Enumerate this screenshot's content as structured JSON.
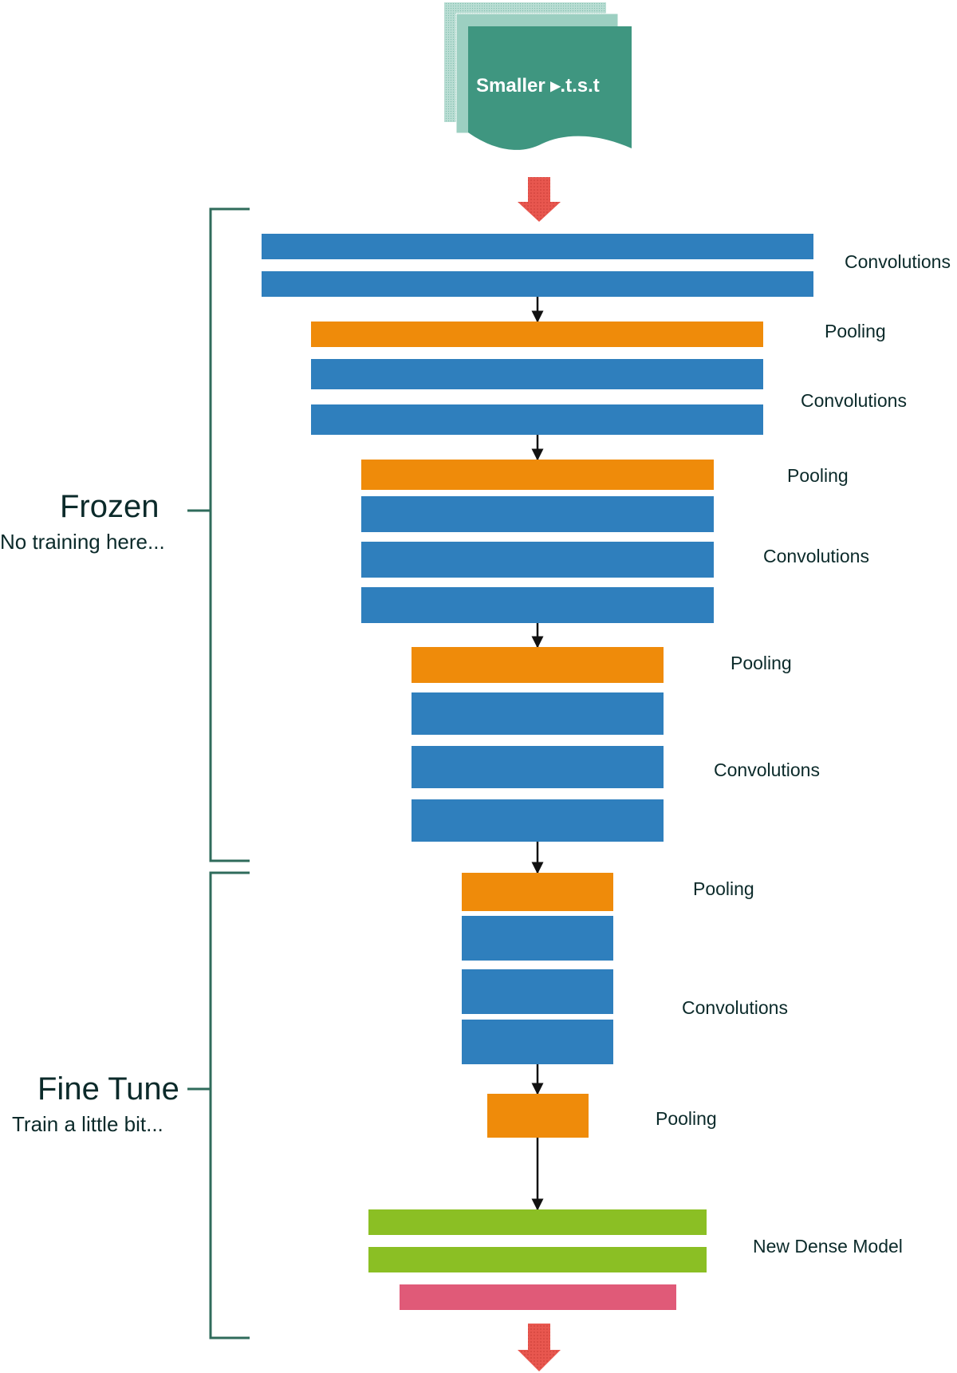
{
  "dataset": {
    "label": "Smaller ▸.t.s.t",
    "color": "#3f9680"
  },
  "colors": {
    "convolution": "#2f7fbd",
    "pooling": "#ef8b0a",
    "dense": "#8bbf24",
    "output": "#e05a78",
    "arrow_accent": "#e8574f",
    "bracket": "#2f6b5b",
    "connector": "#111111"
  },
  "layer_labels": {
    "conv1": "Convolutions",
    "pool1": "Pooling",
    "conv2": "Convolutions",
    "pool2": "Pooling",
    "conv3": "Convolutions",
    "pool3": "Pooling",
    "conv4": "Convolutions",
    "pool4": "Pooling",
    "conv5": "Convolutions",
    "pool5": "Pooling",
    "dense": "New Dense Model"
  },
  "frozen": {
    "title": "Frozen",
    "subtitle": "No training here..."
  },
  "fine_tune": {
    "title": "Fine Tune",
    "subtitle": "Train a little bit..."
  }
}
